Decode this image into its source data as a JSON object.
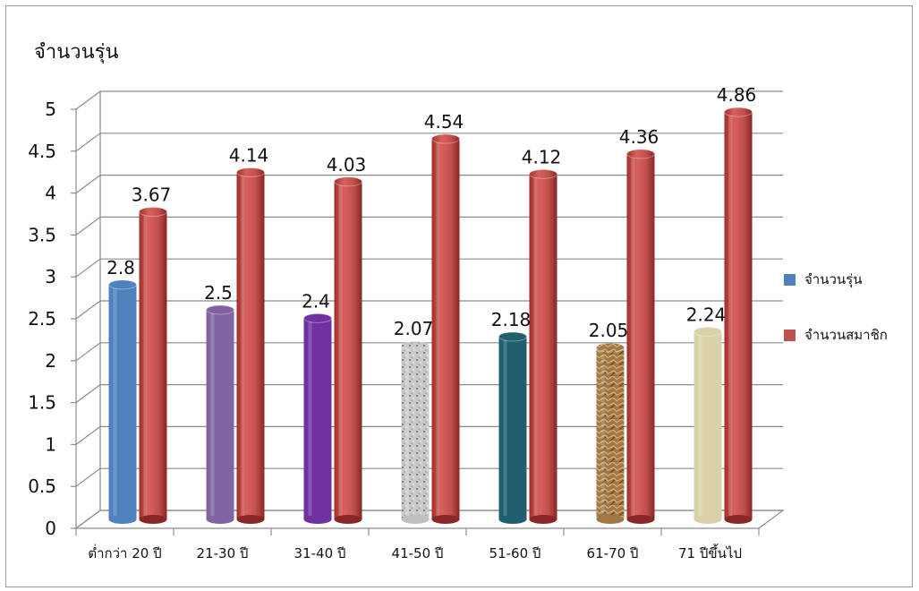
{
  "chart_data": {
    "type": "bar",
    "title": "จำนวนรุ่น",
    "categories": [
      "ต่ำกว่า 20 ปี",
      "21-30 ปี",
      "31-40 ปี",
      "41-50 ปี",
      "51-60 ปี",
      "61-70 ปี",
      "71 ปีขึ้นไป"
    ],
    "series": [
      {
        "name": "จำนวนรุ่น",
        "values": [
          2.8,
          2.5,
          2.4,
          2.07,
          2.18,
          2.05,
          2.24
        ]
      },
      {
        "name": "จำนวนสมาชิก",
        "values": [
          3.67,
          4.14,
          4.03,
          4.54,
          4.12,
          4.36,
          4.86
        ]
      }
    ],
    "ylim": [
      0,
      5
    ],
    "yticks": [
      "0",
      "0.5",
      "1",
      "1.5",
      "2",
      "2.5",
      "3",
      "3.5",
      "4",
      "4.5",
      "5"
    ],
    "grid": true,
    "legend": "right",
    "series1_colors": [
      "#4f81bd",
      "#8064a2",
      "#7030a0",
      "#bfbfbf",
      "#1f5f6f",
      "#a07845",
      "#d9d2a8"
    ],
    "series2_color": "#c0504d",
    "legend_color_series1": "#4f81bd"
  }
}
